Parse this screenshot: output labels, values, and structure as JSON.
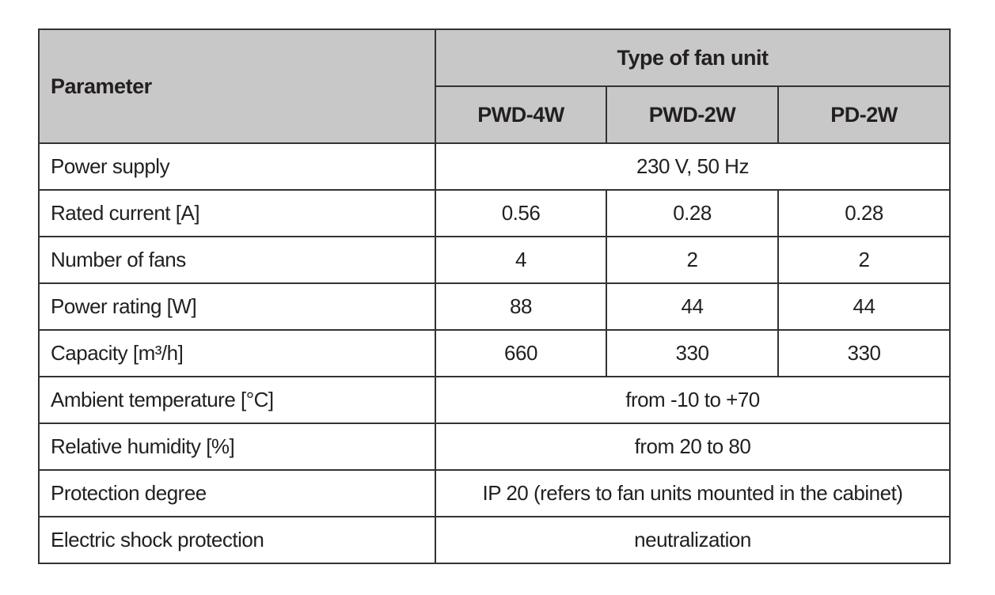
{
  "header": {
    "parameter": "Parameter",
    "group": "Type of fan unit",
    "columns": [
      "PWD-4W",
      "PWD-2W",
      "PD-2W"
    ]
  },
  "rows": [
    {
      "parameter": "Power supply",
      "values": [
        "230 V, 50 Hz"
      ]
    },
    {
      "parameter": "Rated current [A]",
      "values": [
        "0.56",
        "0.28",
        "0.28"
      ]
    },
    {
      "parameter": "Number of fans",
      "values": [
        "4",
        "2",
        "2"
      ]
    },
    {
      "parameter": "Power rating [W]",
      "values": [
        "88",
        "44",
        "44"
      ]
    },
    {
      "parameter": "Capacity [m³/h]",
      "values": [
        "660",
        "330",
        "330"
      ]
    },
    {
      "parameter": "Ambient temperature [°C]",
      "values": [
        "from -10 to +70"
      ]
    },
    {
      "parameter": "Relative humidity [%]",
      "values": [
        "from 20 to 80"
      ]
    },
    {
      "parameter": "Protection degree",
      "values": [
        "IP 20 (refers to fan units mounted in the cabinet)"
      ]
    },
    {
      "parameter": "Electric shock protection",
      "values": [
        "neutralization"
      ]
    }
  ]
}
